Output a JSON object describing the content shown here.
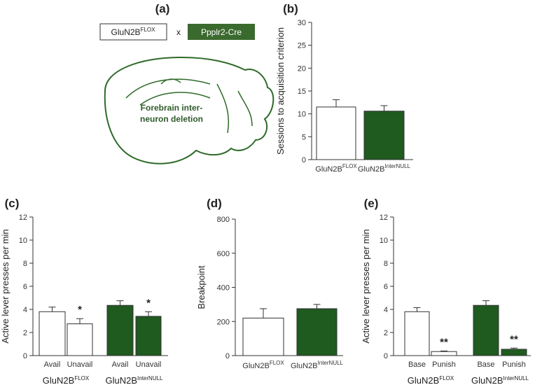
{
  "diagram": {
    "panel": "(a)",
    "left_box": {
      "text": "GluN2B",
      "sup": "FLOX"
    },
    "cross": "x",
    "right_box": "Ppplr2-Cre",
    "caption": [
      "Forebrain inter-",
      "neuron deletion"
    ]
  },
  "chart_data": [
    {
      "type": "bar",
      "panel": "(b)",
      "ylabel": "Sessions to acquisition criterion",
      "categories": [
        {
          "text": "GluN2B",
          "sup": "FLOX"
        },
        {
          "text": "GluN2B",
          "sup": "InterNULL"
        }
      ],
      "values": [
        11.5,
        10.6
      ],
      "errors": [
        1.6,
        1.2
      ],
      "colors": [
        "#ffffff",
        "#1f5a1f"
      ],
      "ylim": [
        0,
        30
      ],
      "yticks": [
        0,
        5,
        10,
        15,
        20,
        25,
        30
      ]
    },
    {
      "type": "bar",
      "panel": "(c)",
      "ylabel": "Active lever presses per min",
      "categories": [
        "Avail",
        "Unavail",
        "Avail",
        "Unavail"
      ],
      "groups": [
        {
          "text": "GluN2B",
          "sup": "FLOX"
        },
        {
          "text": "GluN2B",
          "sup": "InterNULL"
        }
      ],
      "values": [
        3.8,
        2.75,
        4.35,
        3.4
      ],
      "errors": [
        0.4,
        0.45,
        0.4,
        0.4
      ],
      "colors": [
        "#ffffff",
        "#ffffff",
        "#1f5a1f",
        "#1f5a1f"
      ],
      "annotations": [
        {
          "index": 1,
          "text": "*"
        },
        {
          "index": 3,
          "text": "*"
        }
      ],
      "ylim": [
        0,
        12
      ],
      "yticks": [
        0,
        2,
        4,
        6,
        8,
        10,
        12
      ]
    },
    {
      "type": "bar",
      "panel": "(d)",
      "ylabel": "Breakpoint",
      "categories": [
        {
          "text": "GluN2B",
          "sup": "FLOX"
        },
        {
          "text": "GluN2B",
          "sup": "InterNULL"
        }
      ],
      "values": [
        220,
        275
      ],
      "errors": [
        55,
        25
      ],
      "colors": [
        "#ffffff",
        "#1f5a1f"
      ],
      "ylim": [
        0,
        800
      ],
      "yticks": [
        0,
        200,
        400,
        600,
        800
      ]
    },
    {
      "type": "bar",
      "panel": "(e)",
      "ylabel": "Active lever presses per min",
      "categories": [
        "Base",
        "Punish",
        "Base",
        "Punish"
      ],
      "groups": [
        {
          "text": "GluN2B",
          "sup": "FLOX"
        },
        {
          "text": "GluN2B",
          "sup": "InterNULL"
        }
      ],
      "values": [
        3.8,
        0.35,
        4.35,
        0.55
      ],
      "errors": [
        0.35,
        0.05,
        0.4,
        0.1
      ],
      "colors": [
        "#ffffff",
        "#ffffff",
        "#1f5a1f",
        "#1f5a1f"
      ],
      "annotations": [
        {
          "index": 1,
          "text": "**"
        },
        {
          "index": 3,
          "text": "**"
        }
      ],
      "ylim": [
        0,
        12
      ],
      "yticks": [
        0,
        2,
        4,
        6,
        8,
        10,
        12
      ]
    }
  ]
}
